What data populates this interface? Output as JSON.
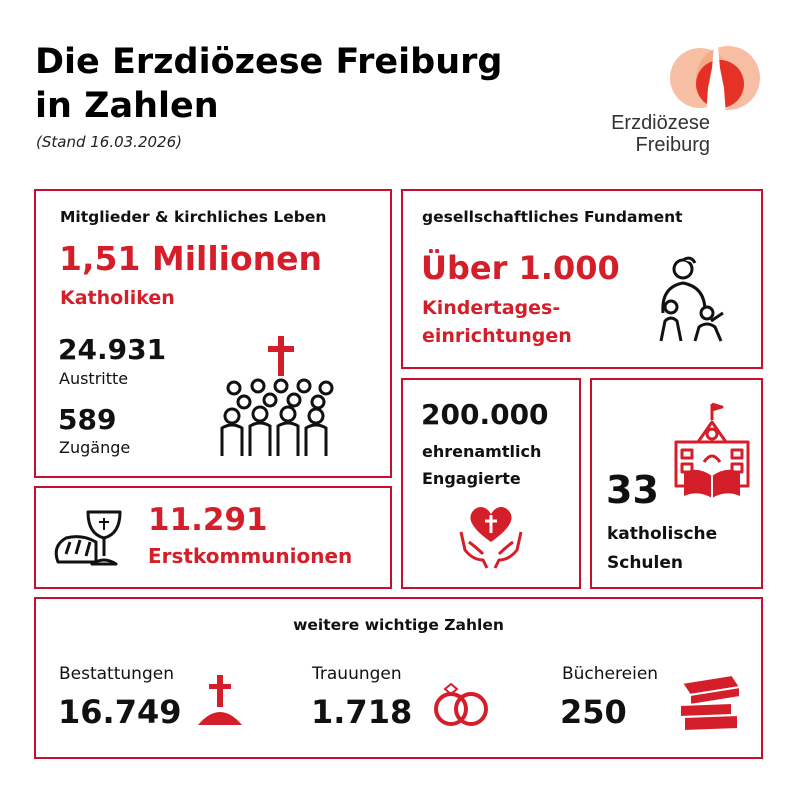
{
  "header": {
    "title_line1": "Die Erzdiözese Freiburg",
    "title_line2": "in Zahlen",
    "stand": "(Stand 16.03.2026)"
  },
  "logo": {
    "line1": "Erzdiözese",
    "line2": "Freiburg",
    "icon": "cathedral-spire-logo-icon"
  },
  "colors": {
    "accent": "#d41f2a",
    "border": "#c8102e",
    "logo_peach": "#f4a582"
  },
  "mitglieder": {
    "heading": "Mitglieder & kirchliches Leben",
    "katholiken_value": "1,51 Millionen",
    "katholiken_label": "Katholiken",
    "austritte_value": "24.931",
    "austritte_label": "Austritte",
    "zugaenge_value": "589",
    "zugaenge_label": "Zugänge",
    "icon": "congregation-cross-icon"
  },
  "fundament": {
    "heading": "gesellschaftliches Fundament",
    "value": "Über 1.000",
    "label_line1": "Kindertages-",
    "label_line2": "einrichtungen",
    "icon": "caregiver-children-icon"
  },
  "kommunion": {
    "value": "11.291",
    "label": "Erstkommunionen",
    "icon": "chalice-bread-icon"
  },
  "ehrenamt": {
    "value": "200.000",
    "label_line1": "ehrenamtlich",
    "label_line2": "Engagierte",
    "icon": "hands-heart-cross-icon"
  },
  "schulen": {
    "value": "33",
    "label_line1": "katholische",
    "label_line2": "Schulen",
    "icon": "school-book-icon"
  },
  "weitere": {
    "heading": "weitere wichtige Zahlen",
    "bestattungen_label": "Bestattungen",
    "bestattungen_value": "16.749",
    "trauungen_label": "Trauungen",
    "trauungen_value": "1.718",
    "buechereien_label": "Büchereien",
    "buechereien_value": "250"
  }
}
